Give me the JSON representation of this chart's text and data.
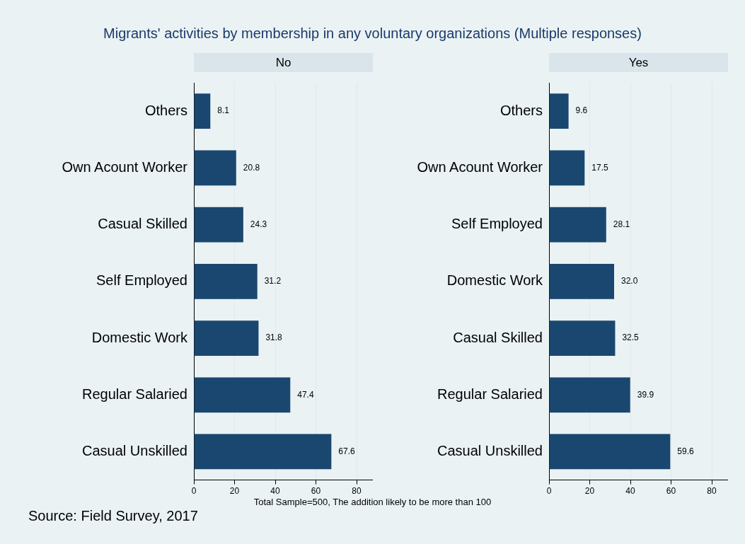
{
  "chart_data": [
    {
      "type": "bar",
      "orientation": "horizontal",
      "title": "Migrants' activities by membership in any voluntary organizations (Multiple responses)",
      "subtitle": "No",
      "categories": [
        "Others",
        "Own Acount Worker",
        "Casual Skilled",
        "Self Employed",
        "Domestic Work",
        "Regular Salaried",
        "Casual Unskilled"
      ],
      "values": [
        8.1,
        20.8,
        24.3,
        31.2,
        31.8,
        47.4,
        67.6
      ],
      "value_labels": [
        "8.1",
        "20.8",
        "24.3",
        "31.2",
        "31.8",
        "47.4",
        "67.6"
      ],
      "color": "#1a476f",
      "xlim": [
        0,
        88
      ],
      "xticks": [
        0,
        20,
        40,
        60,
        80
      ],
      "grid": "x",
      "legend": false,
      "annotations": [
        "Total Sample=500, The addition likely to be more than 100",
        "Source: Field Survey, 2017"
      ]
    },
    {
      "type": "bar",
      "orientation": "horizontal",
      "subtitle": "Yes",
      "categories": [
        "Others",
        "Own Acount Worker",
        "Self Employed",
        "Domestic Work",
        "Casual Skilled",
        "Regular Salaried",
        "Casual Unskilled"
      ],
      "values": [
        9.6,
        17.5,
        28.1,
        32.0,
        32.5,
        39.9,
        59.6
      ],
      "value_labels": [
        "9.6",
        "17.5",
        "28.1",
        "32.0",
        "32.5",
        "39.9",
        "59.6"
      ],
      "color": "#1a476f",
      "xlim": [
        0,
        88
      ],
      "xticks": [
        0,
        20,
        40,
        60,
        80
      ],
      "grid": "x",
      "legend": false
    }
  ]
}
